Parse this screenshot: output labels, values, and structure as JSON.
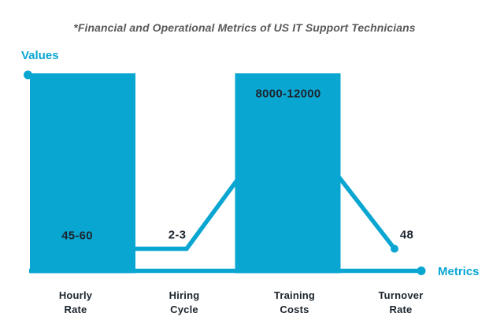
{
  "title": "*Financial and Operational Metrics of US IT Support Technicians",
  "y_axis_label": "Values",
  "x_axis_label": "Metrics",
  "colors": {
    "accent": "#0aa6d2",
    "dark_text": "#1c252e",
    "title_text": "#58595b",
    "background": "#ffffff"
  },
  "chart_data": {
    "type": "bar",
    "overlay": "line",
    "title": "*Financial and Operational Metrics of US IT Support Technicians",
    "xlabel": "Metrics",
    "ylabel": "Values",
    "categories": [
      "Hourly Rate",
      "Hiring Cycle",
      "Training Costs",
      "Turnover Rate"
    ],
    "value_labels": [
      "45-60",
      "2-3",
      "8000-12000",
      "48"
    ],
    "values_numeric": [
      [
        45,
        60
      ],
      [
        2,
        3
      ],
      [
        8000,
        12000
      ],
      [
        48,
        48
      ]
    ],
    "series": [
      {
        "name": "Bars",
        "type": "bar",
        "visible_at_categories": [
          "Hourly Rate",
          "Training Costs"
        ],
        "note": "bars drawn at full plot height; figure is not to numeric scale"
      },
      {
        "name": "Line",
        "type": "line",
        "marker_at_categories": [
          "Turnover Rate"
        ],
        "shape_relative_heights": [
          "low",
          "low",
          "high",
          "low"
        ]
      }
    ],
    "legend": "none",
    "grid": false,
    "not_to_scale": true
  }
}
